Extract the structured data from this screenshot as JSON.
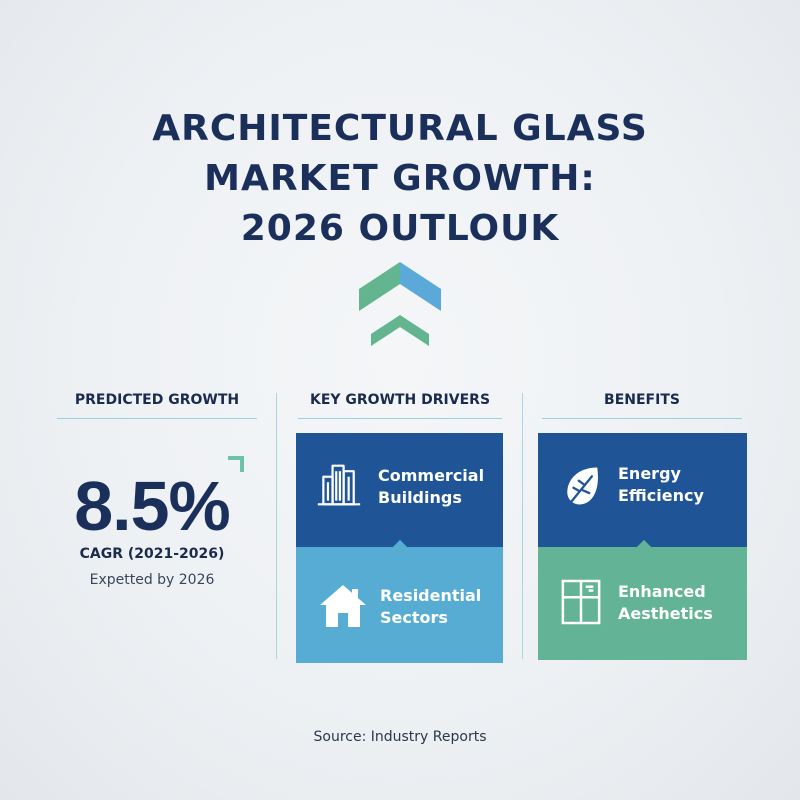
{
  "title": {
    "line1": "ARCHITECTURAL GLASS",
    "line2": "MARKET GROWTH:",
    "line3": "2026 OUTLOUK"
  },
  "columns": {
    "predicted_growth": {
      "heading": "PREDICTED GROWTH",
      "value": "8.5%",
      "cagr_label": "CAGR (2021-2026)",
      "note": "Expetted by 2026"
    },
    "key_drivers": {
      "heading": "KEY GROWTH DRIVERS",
      "items": [
        {
          "line1": "Commercial",
          "line2": "Buildings",
          "icon": "buildings-icon"
        },
        {
          "line1": "Residential",
          "line2": "Sectors",
          "icon": "house-icon"
        }
      ]
    },
    "benefits": {
      "heading": "BENEFITS",
      "items": [
        {
          "line1": "Energy",
          "line2": "Efficiency",
          "icon": "leaf-icon"
        },
        {
          "line1": "Enhanced",
          "line2": "Aesthetics",
          "icon": "window-icon"
        }
      ]
    }
  },
  "source": "Source: Industry Reports",
  "colors": {
    "navy_text": "#1a2f5a",
    "dark_blue_card": "#1f5596",
    "light_blue_card": "#56acd3",
    "green_card": "#63b396",
    "chevron_green": "#63b58f",
    "chevron_blue": "#5aa9d9",
    "divider": "#a9d4e6"
  }
}
